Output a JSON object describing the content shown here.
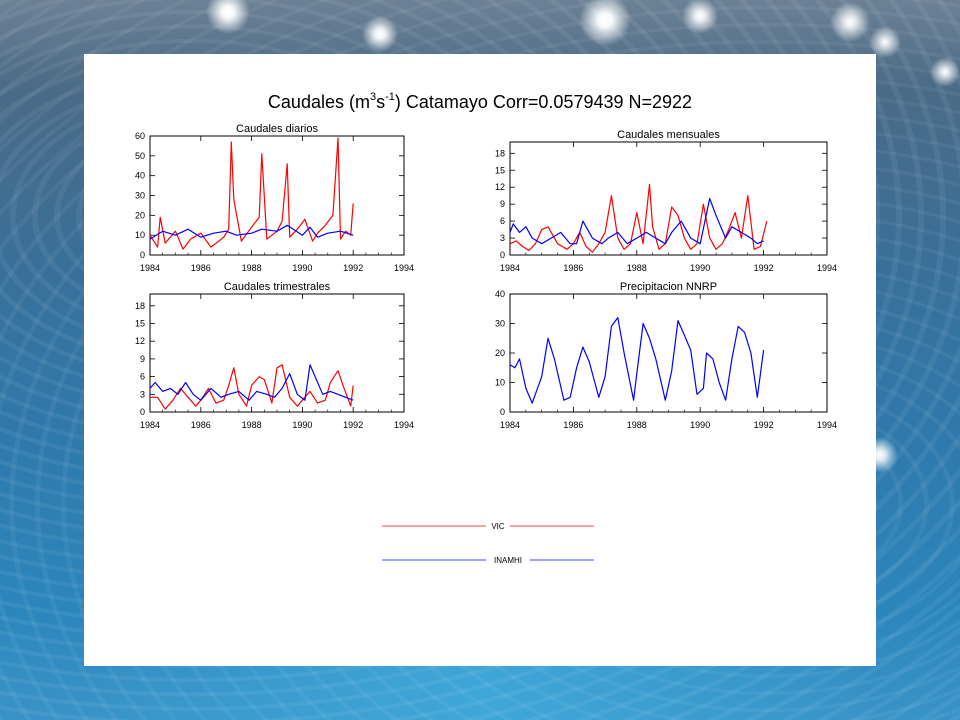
{
  "header": {
    "title_prefix": "Caudales (m",
    "title_sup1": "3",
    "title_mid": "s",
    "title_sup2": "-1",
    "title_suffix": ") Catamayo Corr=0.0579439 N=2922"
  },
  "legend": {
    "series": [
      {
        "name": "VIC",
        "color": "#ff0000"
      },
      {
        "name": "INAMHI",
        "color": "#0000ff"
      }
    ]
  },
  "colors": {
    "vic": "#ff0000",
    "inamhi": "#0000ff"
  },
  "chart_data": [
    {
      "type": "line",
      "title": "Caudales diarios",
      "xlim": [
        1984,
        1994
      ],
      "ylim": [
        0,
        60
      ],
      "xticks": [
        1984,
        1986,
        1988,
        1990,
        1992,
        1994
      ],
      "yticks": [
        0,
        10,
        20,
        30,
        40,
        50,
        60
      ],
      "series": [
        {
          "name": "VIC",
          "color": "#ff0000",
          "x": [
            1984.0,
            1984.3,
            1984.4,
            1984.6,
            1985.0,
            1985.3,
            1985.6,
            1986.0,
            1986.4,
            1986.9,
            1987.1,
            1987.2,
            1987.3,
            1987.6,
            1988.0,
            1988.3,
            1988.4,
            1988.6,
            1989.0,
            1989.2,
            1989.4,
            1989.5,
            1989.8,
            1990.1,
            1990.4,
            1990.6,
            1990.9,
            1991.2,
            1991.4,
            1991.5,
            1991.7,
            1991.9,
            1992.0
          ],
          "y": [
            10,
            4,
            19,
            6,
            12,
            3,
            8,
            11,
            4,
            9,
            13,
            57,
            28,
            7,
            14,
            19,
            51,
            8,
            12,
            17,
            46,
            9,
            13,
            18,
            7,
            11,
            15,
            20,
            59,
            8,
            12,
            10,
            26
          ]
        },
        {
          "name": "INAMHI",
          "color": "#0000ff",
          "x": [
            1984.0,
            1984.5,
            1985.0,
            1985.5,
            1986.0,
            1986.5,
            1987.0,
            1987.4,
            1988.0,
            1988.4,
            1989.0,
            1989.4,
            1990.0,
            1990.3,
            1990.6,
            1991.0,
            1991.5,
            1992.0
          ],
          "y": [
            8,
            12,
            10,
            13,
            9,
            11,
            12,
            10,
            11,
            13,
            12,
            15,
            10,
            14,
            9,
            11,
            12,
            10
          ]
        }
      ]
    },
    {
      "type": "line",
      "title": "Caudales mensuales",
      "xlim": [
        1984,
        1994
      ],
      "ylim": [
        0,
        20
      ],
      "xticks": [
        1984,
        1986,
        1988,
        1990,
        1992,
        1994
      ],
      "yticks": [
        0,
        3,
        6,
        9,
        12,
        15,
        18
      ],
      "series": [
        {
          "name": "VIC",
          "color": "#ff0000",
          "x": [
            1984.0,
            1984.2,
            1984.4,
            1984.6,
            1984.8,
            1985.0,
            1985.2,
            1985.5,
            1985.8,
            1986.0,
            1986.2,
            1986.4,
            1986.6,
            1986.8,
            1987.0,
            1987.2,
            1987.4,
            1987.6,
            1987.8,
            1988.0,
            1988.2,
            1988.4,
            1988.5,
            1988.7,
            1988.9,
            1989.1,
            1989.3,
            1989.5,
            1989.7,
            1989.9,
            1990.1,
            1990.3,
            1990.5,
            1990.7,
            1990.9,
            1991.1,
            1991.3,
            1991.5,
            1991.7,
            1991.9,
            1992.1
          ],
          "y": [
            2,
            2.5,
            1.5,
            0.8,
            2,
            4.5,
            5,
            2,
            1,
            2,
            4,
            1.5,
            0.5,
            2,
            4,
            10.5,
            3,
            1,
            2,
            7.5,
            2,
            12.5,
            5,
            1,
            2,
            8.5,
            7,
            3,
            1,
            2,
            9,
            3,
            1,
            2,
            4.5,
            7.5,
            3,
            10.5,
            1,
            1.5,
            6
          ]
        },
        {
          "name": "INAMHI",
          "color": "#0000ff",
          "x": [
            1984.0,
            1984.1,
            1984.3,
            1984.5,
            1984.7,
            1985.0,
            1985.3,
            1985.6,
            1985.9,
            1986.1,
            1986.3,
            1986.6,
            1986.9,
            1987.1,
            1987.4,
            1987.7,
            1988.0,
            1988.3,
            1988.6,
            1988.9,
            1989.1,
            1989.4,
            1989.7,
            1990.0,
            1990.3,
            1990.5,
            1990.8,
            1991.0,
            1991.3,
            1991.6,
            1991.8,
            1992.0
          ],
          "y": [
            4,
            5.5,
            4,
            5,
            3,
            2,
            3,
            4,
            2,
            2,
            6,
            3,
            2,
            3,
            4,
            2,
            3,
            4,
            3,
            2,
            4,
            6,
            3,
            2,
            10,
            7,
            3,
            5,
            4,
            3,
            2,
            2.5
          ]
        }
      ]
    },
    {
      "type": "line",
      "title": "Caudales trimestrales",
      "xlim": [
        1984,
        1994
      ],
      "ylim": [
        0,
        20
      ],
      "xticks": [
        1984,
        1986,
        1988,
        1990,
        1992,
        1994
      ],
      "yticks": [
        0,
        3,
        6,
        9,
        12,
        15,
        18
      ],
      "series": [
        {
          "name": "VIC",
          "color": "#ff0000",
          "x": [
            1984.0,
            1984.3,
            1984.6,
            1984.9,
            1985.2,
            1985.5,
            1985.8,
            1986.0,
            1986.3,
            1986.6,
            1986.9,
            1987.1,
            1987.3,
            1987.5,
            1987.8,
            1988.0,
            1988.3,
            1988.5,
            1988.8,
            1989.0,
            1989.2,
            1989.5,
            1989.8,
            1990.0,
            1990.3,
            1990.6,
            1990.9,
            1991.1,
            1991.4,
            1991.6,
            1991.9,
            1992.0
          ],
          "y": [
            2.5,
            2.5,
            0.5,
            2,
            4,
            2.5,
            1,
            2,
            4,
            1.5,
            2,
            4.5,
            7.5,
            3,
            1,
            4.5,
            6,
            5.5,
            1.5,
            7.5,
            8,
            2.5,
            1,
            2,
            3.5,
            1.5,
            2,
            5,
            7,
            4.5,
            1,
            4.5
          ]
        },
        {
          "name": "INAMHI",
          "color": "#0000ff",
          "x": [
            1984.0,
            1984.2,
            1984.5,
            1984.8,
            1985.1,
            1985.4,
            1985.7,
            1986.0,
            1986.4,
            1986.8,
            1987.1,
            1987.5,
            1987.9,
            1988.2,
            1988.6,
            1988.9,
            1989.2,
            1989.5,
            1989.8,
            1990.1,
            1990.3,
            1990.5,
            1990.8,
            1991.1,
            1991.4,
            1991.7,
            1992.0
          ],
          "y": [
            4,
            5,
            3.5,
            4,
            3,
            5,
            3,
            2,
            4,
            2.5,
            3,
            3.5,
            2,
            3.5,
            3,
            2.5,
            4,
            6.5,
            3,
            2,
            8,
            6,
            3,
            3.5,
            3,
            2.5,
            2
          ]
        }
      ]
    },
    {
      "type": "line",
      "title": "Precipitacion NNRP",
      "xlim": [
        1984,
        1994
      ],
      "ylim": [
        0,
        40
      ],
      "xticks": [
        1984,
        1986,
        1988,
        1990,
        1992,
        1994
      ],
      "yticks": [
        0,
        10,
        20,
        30,
        40
      ],
      "series": [
        {
          "name": "NNRP",
          "color": "#0000ff",
          "x": [
            1984.0,
            1984.15,
            1984.3,
            1984.5,
            1984.7,
            1985.0,
            1985.2,
            1985.4,
            1985.7,
            1985.9,
            1986.1,
            1986.3,
            1986.5,
            1986.8,
            1987.0,
            1987.2,
            1987.4,
            1987.6,
            1987.9,
            1988.0,
            1988.2,
            1988.4,
            1988.6,
            1988.9,
            1989.1,
            1989.3,
            1989.5,
            1989.7,
            1989.9,
            1990.1,
            1990.2,
            1990.4,
            1990.6,
            1990.8,
            1991.0,
            1991.2,
            1991.4,
            1991.6,
            1991.8,
            1992.0
          ],
          "y": [
            16,
            15,
            18,
            8,
            3,
            12,
            25,
            18,
            4,
            5,
            15,
            22,
            17,
            5,
            12,
            29,
            32,
            20,
            4,
            13,
            30,
            25,
            18,
            4,
            14,
            31,
            26,
            21,
            6,
            8,
            20,
            18,
            10,
            4,
            18,
            29,
            27,
            20,
            5,
            21
          ]
        }
      ]
    }
  ]
}
